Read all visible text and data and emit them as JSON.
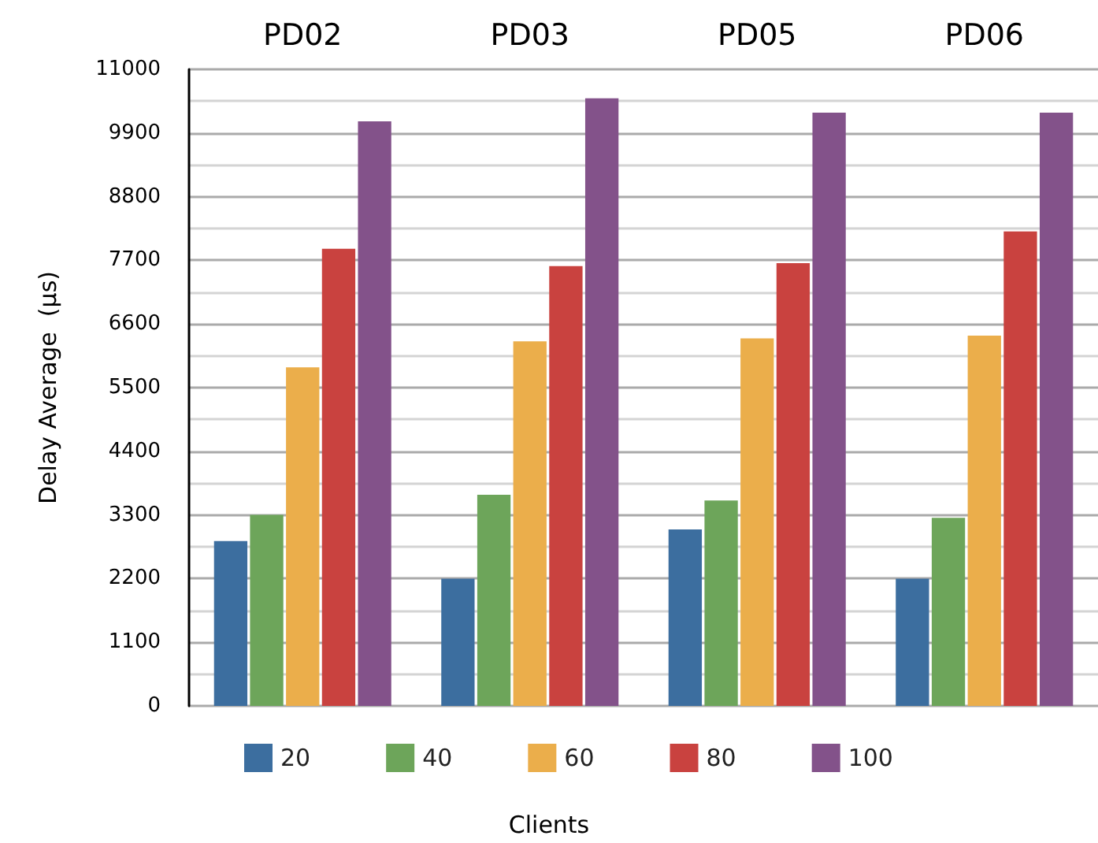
{
  "chart_data": {
    "type": "bar",
    "xlabel": "Clients",
    "ylabel": "Delay Average  (μs)",
    "legend": "bottom",
    "grid": "y",
    "categories": [
      "PD02",
      "PD03",
      "PD05",
      "PD06"
    ],
    "ylim": [
      0,
      11000
    ],
    "yticks": [
      0,
      1100,
      2200,
      3300,
      4400,
      5500,
      6600,
      7700,
      8800,
      9900,
      11000
    ],
    "series": [
      {
        "name": "20",
        "color": "#3c6e9f",
        "values": [
          2850,
          2200,
          3050,
          2200
        ]
      },
      {
        "name": "40",
        "color": "#6da55a",
        "values": [
          3300,
          3650,
          3550,
          3250
        ]
      },
      {
        "name": "60",
        "color": "#ebae4b",
        "values": [
          5850,
          6300,
          6350,
          6400
        ]
      },
      {
        "name": "80",
        "color": "#c9423f",
        "values": [
          7900,
          7600,
          7650,
          8200
        ]
      },
      {
        "name": "100",
        "color": "#83528a",
        "values": [
          10100,
          10500,
          10250,
          10250
        ]
      }
    ]
  }
}
